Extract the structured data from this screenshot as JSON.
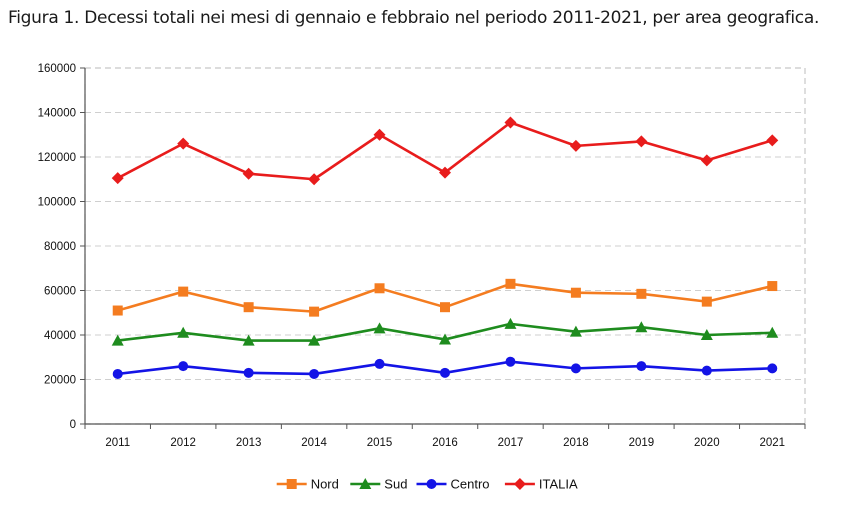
{
  "figure_title": "Figura 1. Decessi totali nei mesi di gennaio e febbraio nel periodo 2011-2021, per area geografica.",
  "chart_data": {
    "type": "line",
    "categories": [
      "2011",
      "2012",
      "2013",
      "2014",
      "2015",
      "2016",
      "2017",
      "2018",
      "2019",
      "2020",
      "2021"
    ],
    "ylim": [
      0,
      160000
    ],
    "yticks": [
      0,
      20000,
      40000,
      60000,
      80000,
      100000,
      120000,
      140000,
      160000
    ],
    "ytick_labels": [
      "0",
      "20000",
      "40000",
      "60000",
      "80000",
      "100000",
      "120000",
      "140000",
      "160000"
    ],
    "grid": true,
    "legend_position": "bottom",
    "series": [
      {
        "name": "Nord",
        "color": "#f47c20",
        "marker": "square",
        "values": [
          51000,
          59500,
          52500,
          50500,
          61000,
          52500,
          63000,
          59000,
          58500,
          55000,
          62000
        ]
      },
      {
        "name": "Sud",
        "color": "#1e8c1e",
        "marker": "triangle",
        "values": [
          37500,
          41000,
          37500,
          37500,
          43000,
          38000,
          45000,
          41500,
          43500,
          40000,
          41000
        ]
      },
      {
        "name": "Centro",
        "color": "#1414e6",
        "marker": "circle",
        "values": [
          22500,
          26000,
          23000,
          22500,
          27000,
          23000,
          28000,
          25000,
          26000,
          24000,
          25000
        ]
      },
      {
        "name": "ITALIA",
        "color": "#e81c1c",
        "marker": "diamond",
        "values": [
          110500,
          126000,
          112500,
          110000,
          130000,
          113000,
          135500,
          125000,
          127000,
          118500,
          127500
        ]
      }
    ]
  }
}
